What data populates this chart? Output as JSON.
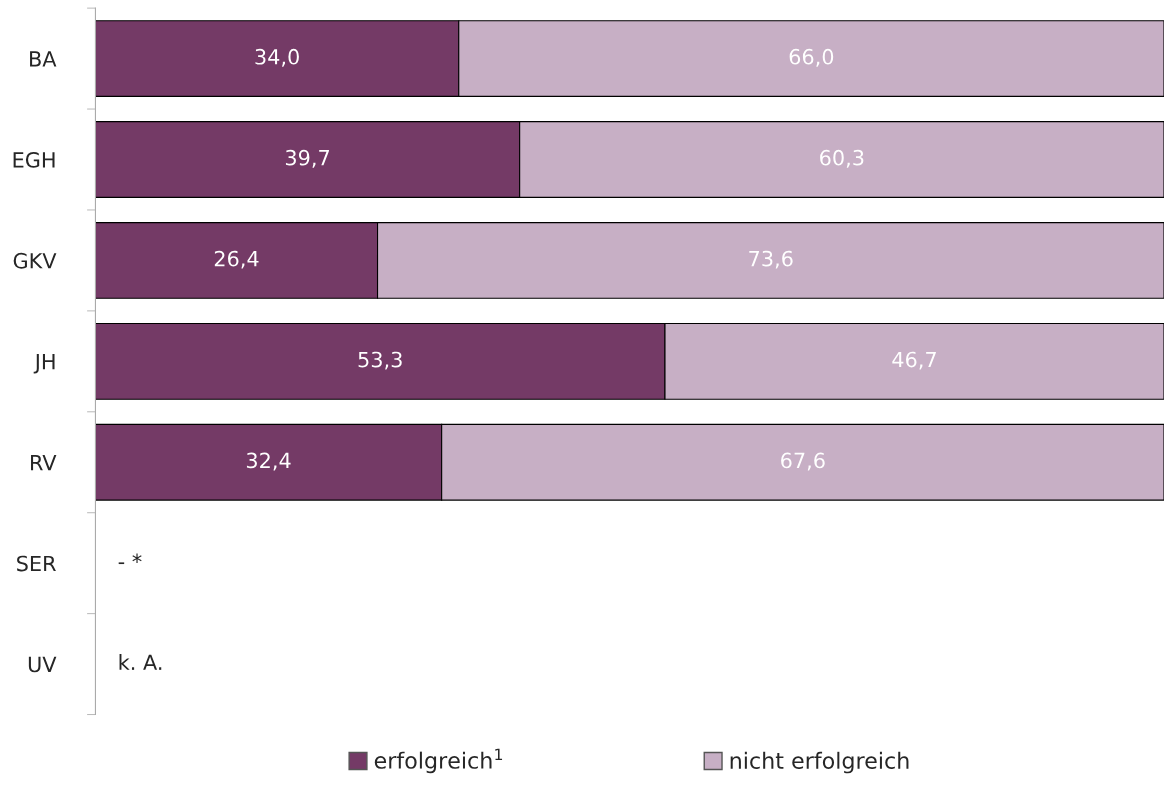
{
  "chart_data": {
    "type": "bar",
    "orientation": "horizontal",
    "stacked": true,
    "categories": [
      "BA",
      "EGH",
      "GKV",
      "JH",
      "RV",
      "SER",
      "UV"
    ],
    "series": [
      {
        "name": "erfolgreich$^{1}$",
        "color": "#743a66",
        "values": [
          34.0,
          39.7,
          26.4,
          53.3,
          32.4,
          null,
          null
        ],
        "value_labels": [
          "34,0",
          "39,7",
          "26,4",
          "53,3",
          "32,4",
          null,
          null
        ]
      },
      {
        "name": "nicht erfolgreich",
        "color": "#c7afc5",
        "values": [
          66.0,
          60.3,
          73.6,
          46.7,
          67.6,
          null,
          null
        ],
        "value_labels": [
          "66,0",
          "60,3",
          "73,6",
          "46,7",
          "67,6",
          null,
          null
        ]
      }
    ],
    "xlim": [
      0,
      100
    ],
    "annotations": [
      "- *",
      "k. A."
    ],
    "tick_labels": "y",
    "grid": false,
    "legend": "bottom"
  }
}
